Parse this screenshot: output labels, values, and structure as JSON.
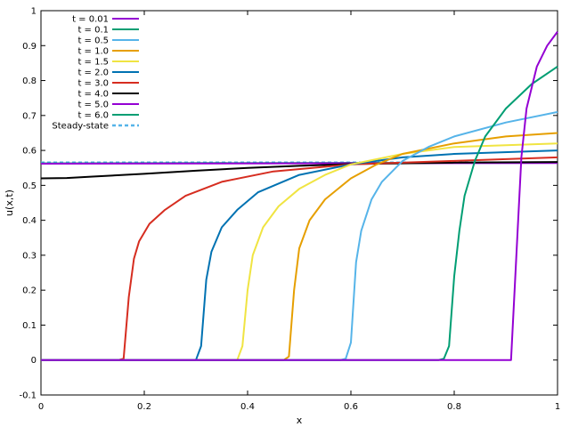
{
  "chart_data": {
    "type": "line",
    "title": "",
    "xlabel": "x",
    "ylabel": "u(x,t)",
    "xlim": [
      0,
      1
    ],
    "ylim": [
      -0.1,
      1
    ],
    "grid": false,
    "legend_position": "top-left",
    "x_ticks": [
      0,
      0.2,
      0.4,
      0.6,
      0.8,
      1
    ],
    "x_tick_labels": [
      "0",
      "0.2",
      "0.4",
      "0.6",
      "0.8",
      "1"
    ],
    "y_ticks": [
      -0.1,
      0,
      0.1,
      0.2,
      0.3,
      0.4,
      0.5,
      0.6,
      0.7,
      0.8,
      0.9,
      1
    ],
    "y_tick_labels": [
      "-0.1",
      "0",
      "0.1",
      "0.2",
      "0.3",
      "0.4",
      "0.5",
      "0.6",
      "0.7",
      "0.8",
      "0.9",
      "1"
    ],
    "series": [
      {
        "name": "t = 0.01",
        "color": "#9400d3",
        "dashed": false,
        "x": [
          0,
          0.5,
          0.9,
          0.91,
          0.92,
          0.93,
          0.94,
          0.95,
          0.96,
          0.98,
          1.0
        ],
        "y": [
          0,
          0,
          0,
          0,
          0.29,
          0.58,
          0.72,
          0.78,
          0.84,
          0.9,
          0.94
        ]
      },
      {
        "name": "t = 0.1",
        "color": "#009e73",
        "dashed": false,
        "x": [
          0,
          0.5,
          0.77,
          0.78,
          0.79,
          0.8,
          0.81,
          0.82,
          0.84,
          0.86,
          0.9,
          0.95,
          1.0
        ],
        "y": [
          0,
          0,
          0,
          0.004,
          0.04,
          0.24,
          0.37,
          0.47,
          0.57,
          0.64,
          0.72,
          0.79,
          0.84
        ]
      },
      {
        "name": "t = 0.5",
        "color": "#56b4e9",
        "dashed": false,
        "x": [
          0,
          0.4,
          0.58,
          0.59,
          0.6,
          0.61,
          0.62,
          0.64,
          0.66,
          0.7,
          0.75,
          0.8,
          0.9,
          1.0
        ],
        "y": [
          0,
          0,
          0,
          0.004,
          0.05,
          0.28,
          0.37,
          0.46,
          0.51,
          0.57,
          0.61,
          0.64,
          0.68,
          0.71
        ]
      },
      {
        "name": "t = 1.0",
        "color": "#e69f00",
        "dashed": false,
        "x": [
          0,
          0.3,
          0.47,
          0.48,
          0.49,
          0.5,
          0.52,
          0.55,
          0.6,
          0.65,
          0.7,
          0.8,
          0.9,
          1.0
        ],
        "y": [
          0,
          0,
          0,
          0.01,
          0.2,
          0.32,
          0.4,
          0.46,
          0.52,
          0.56,
          0.59,
          0.62,
          0.64,
          0.65
        ]
      },
      {
        "name": "t = 1.5",
        "color": "#f0e442",
        "dashed": false,
        "x": [
          0,
          0.3,
          0.38,
          0.39,
          0.4,
          0.41,
          0.43,
          0.46,
          0.5,
          0.55,
          0.6,
          0.7,
          0.8,
          1.0
        ],
        "y": [
          0,
          0,
          0,
          0.04,
          0.2,
          0.3,
          0.38,
          0.44,
          0.49,
          0.53,
          0.56,
          0.59,
          0.61,
          0.62
        ]
      },
      {
        "name": "t = 2.0",
        "color": "#0072b2",
        "dashed": false,
        "x": [
          0,
          0.2,
          0.3,
          0.31,
          0.32,
          0.33,
          0.35,
          0.38,
          0.42,
          0.5,
          0.6,
          0.7,
          0.8,
          1.0
        ],
        "y": [
          0,
          0,
          0,
          0.04,
          0.23,
          0.31,
          0.38,
          0.43,
          0.48,
          0.53,
          0.56,
          0.58,
          0.59,
          0.6
        ]
      },
      {
        "name": "t = 3.0",
        "color": "#d62d20",
        "dashed": false,
        "x": [
          0,
          0.15,
          0.16,
          0.17,
          0.18,
          0.19,
          0.21,
          0.24,
          0.28,
          0.35,
          0.45,
          0.6,
          0.8,
          1.0
        ],
        "y": [
          0,
          0,
          0.004,
          0.18,
          0.29,
          0.34,
          0.39,
          0.43,
          0.47,
          0.51,
          0.54,
          0.56,
          0.57,
          0.58
        ]
      },
      {
        "name": "t = 4.0",
        "color": "#000000",
        "dashed": false,
        "x": [
          0,
          0.05,
          0.1,
          0.2,
          0.3,
          0.4,
          0.5,
          0.6,
          0.8,
          1.0
        ],
        "y": [
          0.52,
          0.521,
          0.525,
          0.533,
          0.542,
          0.55,
          0.556,
          0.561,
          0.565,
          0.567
        ]
      },
      {
        "name": "t = 5.0",
        "color": "#9400d3",
        "dashed": false,
        "x": [
          0,
          0.5,
          1.0
        ],
        "y": [
          0.562,
          0.563,
          0.564
        ]
      },
      {
        "name": "t = 6.0",
        "color": "#009e73",
        "dashed": false,
        "x": [
          0,
          0.5,
          1.0
        ],
        "y": [
          0.563,
          0.564,
          0.565
        ]
      },
      {
        "name": "Steady-state",
        "color": "#56b4e9",
        "dashed": true,
        "x": [
          0,
          1.0
        ],
        "y": [
          0.565,
          0.565
        ]
      }
    ]
  }
}
